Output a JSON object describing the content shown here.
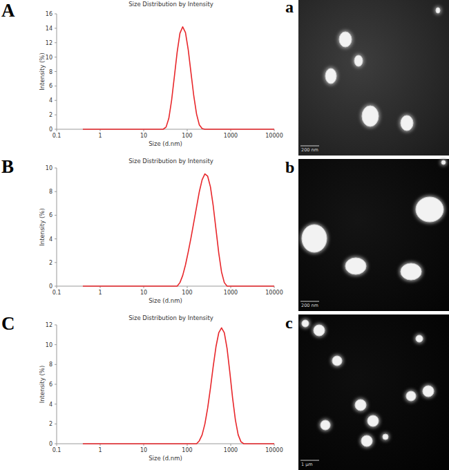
{
  "chart_data": [
    {
      "type": "line",
      "title": "Size Distribution by Intensity",
      "x_label": "Size (d.nm)",
      "y_label": "Intensity (%)",
      "x": [
        0.4,
        28,
        32.7,
        37.8,
        43.8,
        50.7,
        58.8,
        68.1,
        78.8,
        91.3,
        105.7,
        122.4,
        141.8,
        164.2,
        190.1,
        220.2,
        255,
        10000
      ],
      "values": [
        0,
        0,
        0.3,
        1.5,
        4.0,
        7.3,
        10.7,
        13.3,
        14.2,
        13.4,
        11.0,
        7.8,
        4.6,
        2.1,
        0.6,
        0.1,
        0,
        0
      ],
      "color": "#e8262a",
      "log": "x",
      "grid": false,
      "xlim": [
        0.1,
        10000
      ],
      "ylim": [
        0,
        16
      ],
      "xticks": [
        0.1,
        1,
        10,
        100,
        1000,
        10000
      ],
      "yticks": [
        0,
        2,
        4,
        6,
        8,
        10,
        12,
        14,
        16
      ]
    },
    {
      "type": "line",
      "title": "Size Distribution by Intensity",
      "x_label": "Size (d.nm)",
      "y_label": "Intensity (%)",
      "x": [
        0.4,
        58.8,
        68.1,
        78.8,
        91.3,
        105.7,
        122.4,
        141.8,
        164.2,
        190.1,
        220.2,
        255,
        295.3,
        342,
        396.1,
        458.7,
        531.2,
        615.1,
        712.4,
        825,
        10000
      ],
      "values": [
        0,
        0,
        0.3,
        0.9,
        1.8,
        2.9,
        4.1,
        5.4,
        6.7,
        8.0,
        9.0,
        9.5,
        9.3,
        8.4,
        6.8,
        4.8,
        2.8,
        1.2,
        0.3,
        0,
        0
      ],
      "color": "#e8262a",
      "log": "x",
      "grid": false,
      "xlim": [
        0.1,
        10000
      ],
      "ylim": [
        0,
        10
      ],
      "xticks": [
        0.1,
        1,
        10,
        100,
        1000,
        10000
      ],
      "yticks": [
        0,
        2,
        4,
        6,
        8,
        10
      ]
    },
    {
      "type": "line",
      "title": "Size Distribution by Intensity",
      "x_label": "Size (d.nm)",
      "y_label": "Intensity (%)",
      "x": [
        0.4,
        164.2,
        190.1,
        220.2,
        255,
        295.3,
        342,
        396.1,
        458.7,
        531.2,
        615.1,
        712.4,
        825,
        955.4,
        1106,
        1281,
        1484,
        1718,
        1990,
        10000
      ],
      "values": [
        0,
        0,
        0.3,
        0.9,
        2.0,
        3.6,
        5.6,
        7.8,
        9.8,
        11.2,
        11.7,
        11.2,
        9.6,
        7.2,
        4.6,
        2.4,
        0.9,
        0.2,
        0,
        0
      ],
      "color": "#e8262a",
      "log": "x",
      "grid": false,
      "xlim": [
        0.1,
        10000
      ],
      "ylim": [
        0,
        12
      ],
      "xticks": [
        0.1,
        1,
        10,
        100,
        1000,
        10000
      ],
      "yticks": [
        0,
        2,
        4,
        6,
        8,
        10,
        12
      ]
    }
  ],
  "panel_labels": [
    "A",
    "B",
    "C"
  ],
  "images": [
    {
      "label": "a",
      "scale_bar": "200 nm"
    },
    {
      "label": "b",
      "scale_bar": "200 nm"
    },
    {
      "label": "c",
      "scale_bar": "1 μm"
    }
  ]
}
